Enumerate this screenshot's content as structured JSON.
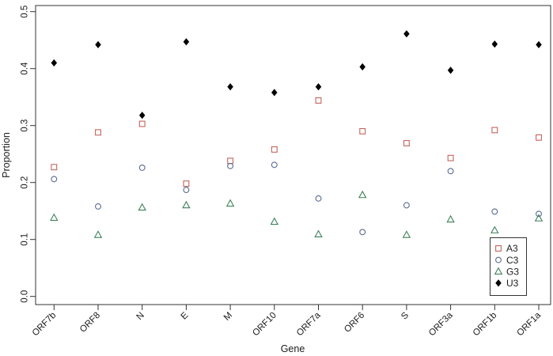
{
  "chart_data": {
    "type": "scatter",
    "title": "",
    "xlabel": "Gene",
    "ylabel": "Proportion",
    "categories": [
      "ORF7b",
      "ORF8",
      "N",
      "E",
      "M",
      "ORF10",
      "ORF7a",
      "ORF6",
      "S",
      "ORF3a",
      "ORF1b",
      "ORF1a"
    ],
    "series": [
      {
        "name": "A3",
        "marker": "open-square-icon",
        "color": "#c4645c",
        "values": [
          0.227,
          0.288,
          0.303,
          0.198,
          0.238,
          0.258,
          0.344,
          0.29,
          0.269,
          0.243,
          0.292,
          0.279
        ]
      },
      {
        "name": "C3",
        "marker": "open-circle-icon",
        "color": "#5a6c91",
        "values": [
          0.206,
          0.158,
          0.226,
          0.187,
          0.229,
          0.231,
          0.172,
          0.113,
          0.16,
          0.22,
          0.149,
          0.145
        ]
      },
      {
        "name": "G3",
        "marker": "open-triangle-icon",
        "color": "#3e805a",
        "values": [
          0.138,
          0.108,
          0.156,
          0.16,
          0.163,
          0.131,
          0.109,
          0.178,
          0.108,
          0.135,
          0.116,
          0.137
        ]
      },
      {
        "name": "U3",
        "marker": "filled-diamond-icon",
        "color": "#000000",
        "values": [
          0.41,
          0.442,
          0.318,
          0.447,
          0.368,
          0.358,
          0.368,
          0.403,
          0.461,
          0.397,
          0.443,
          0.442
        ]
      }
    ],
    "ylim": [
      0.0,
      0.5
    ],
    "ytick_labels": [
      "0.0",
      "0.1",
      "0.2",
      "0.3",
      "0.4",
      "0.5"
    ],
    "grid": false,
    "legend_position": "bottom-right",
    "legend_entries": [
      "A3",
      "C3",
      "G3",
      "U3"
    ],
    "background": "#ffffff",
    "axis_color": "#333333",
    "text_color": "#1c1c1c"
  }
}
